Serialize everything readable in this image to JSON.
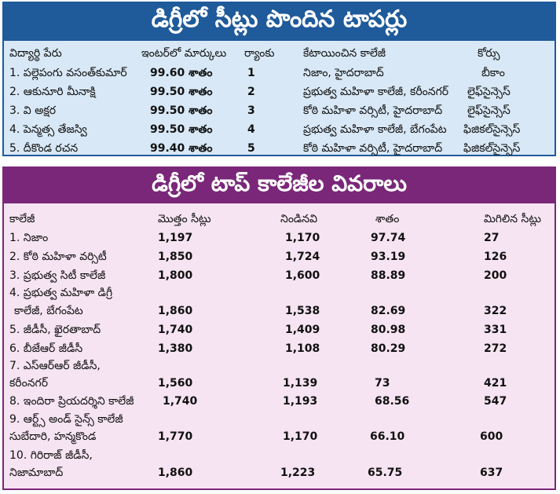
{
  "toppers": {
    "title": "డిగ్రీలో సీట్లు పొందిన టాపర్లు",
    "headers": [
      "విద్యార్థి పేరు",
      "ఇంటర్‌లో మార్కులు",
      "ర్యాంకు",
      "కేటాయించిన కాలేజీ",
      "కోర్సు"
    ],
    "rows": [
      [
        "1. పల్లెపంగు వసంత్‌కుమార్",
        "99.60 శాతం",
        "1",
        "నిజాం, హైదరాబాద్",
        "బీకాం"
      ],
      [
        "2. ఆకునూరి మీనాక్షి",
        "99.50 శాతం",
        "2",
        "ప్రభుత్వ మహిళా కాలేజీ, కరీంనగర్",
        "లైఫ్‌సైన్సెస్"
      ],
      [
        "3. వి అక్షర",
        "99.50 శాతం",
        "3",
        "కోఠి మహిళా వర్సిటీ, హైదరాబాద్",
        "లైఫ్‌సైన్సెస్"
      ],
      [
        "4. పెన్మత్స తేజస్వి",
        "99.50 శాతం",
        "4",
        "ప్రభుత్వ మహిళా కాలేజీ, బేగంపేట",
        "ఫిజికల్‌సైన్సెస్"
      ],
      [
        "5. దీకొండ రచన",
        "99.40 శాతం",
        "5",
        "కోఠి మహిళా వర్సిటీ, హైదరాబాద్",
        "ఫిజికల్‌సైన్సెస్"
      ]
    ]
  },
  "colleges": {
    "title": "డిగ్రీలో టాప్ కాలేజీల వివరాలు",
    "headers": [
      "కాలేజీ",
      "మొత్తం సీట్లు",
      "నిండినవి",
      "శాతం",
      "మిగిలిన సీట్లు"
    ],
    "rows": [
      {
        "name": [
          "1. నిజాం"
        ],
        "total": "1,197",
        "filled": "1,170",
        "percent": "97.74",
        "remaining": "27"
      },
      {
        "name": [
          "2. కోఠి మహిళా వర్సిటీ"
        ],
        "total": "1,850",
        "filled": "1,724",
        "percent": "93.19",
        "remaining": "126"
      },
      {
        "name": [
          "3. ప్రభుత్వ సిటీ కాలేజీ"
        ],
        "total": "1,800",
        "filled": "1,600",
        "percent": "88.89",
        "remaining": "200"
      },
      {
        "name": [
          "4. ప్రభుత్వ మహిళా డిగ్రీ",
          "కాలేజీ, బేగంపేట"
        ],
        "total": "1,860",
        "filled": "1,538",
        "percent": "82.69",
        "remaining": "322"
      },
      {
        "name": [
          "5. జీడీసీ, ఖైరతాబాద్"
        ],
        "total": "1,740",
        "filled": "1,409",
        "percent": "80.98",
        "remaining": "331"
      },
      {
        "name": [
          "6. బీజేఆర్ జీడీసీ"
        ],
        "total": "1,380",
        "filled": "1,108",
        "percent": "80.29",
        "remaining": "272"
      },
      {
        "name": [
          "7. ఎస్ఆర్ఆర్ జీడీసీ,",
          "కరీంనగర్"
        ],
        "total": "1,560",
        "filled": "1,139",
        "percent": "73",
        "remaining": "421"
      },
      {
        "name": [
          "8. ఇందిరా ప్రియదర్శిని కాలేజీ"
        ],
        "total": "1,740",
        "filled": "1,193",
        "percent": "68.56",
        "remaining": "547"
      },
      {
        "name": [
          "9. ఆర్ట్స్ అండ్ సైన్స్ కాలేజీ",
          "సుబేదారి, హన్మకొండ"
        ],
        "total": "1,770",
        "filled": "1,170",
        "percent": "66.10",
        "remaining": "600"
      },
      {
        "name": [
          "10. గిరిరాజ్ జీడీసీ,",
          "నిజామాబాద్"
        ],
        "total": "1,860",
        "filled": "1,223",
        "percent": "65.75",
        "remaining": "637"
      }
    ]
  }
}
